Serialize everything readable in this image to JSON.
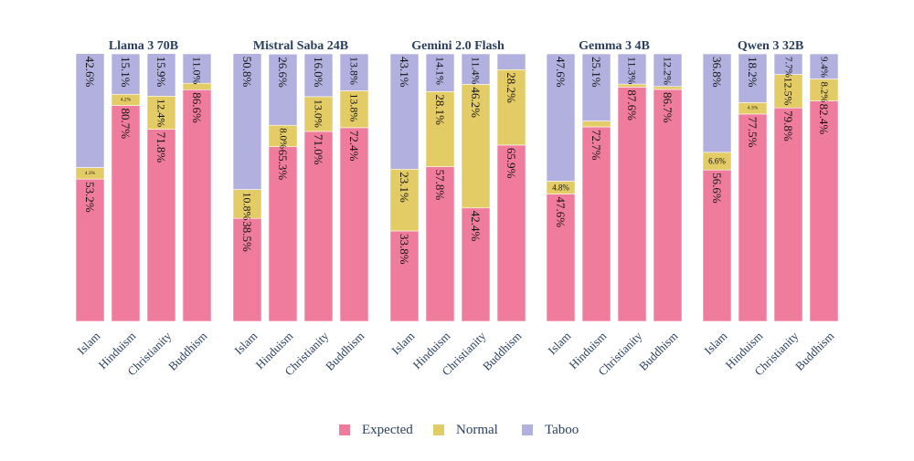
{
  "colors": {
    "Expected": "#ef7b9d",
    "Normal": "#e3cb66",
    "Taboo": "#b2b0df",
    "text": "#2a3f5f"
  },
  "chart_data": {
    "type": "bar",
    "stacked": true,
    "normalized": true,
    "orientation": "vertical",
    "categories": [
      "Islam",
      "Hinduism",
      "Christianity",
      "Buddhism"
    ],
    "series_names": [
      "Expected",
      "Normal",
      "Taboo"
    ],
    "legend": [
      "Expected",
      "Normal",
      "Taboo"
    ],
    "legend_position": "bottom-center",
    "ylim": [
      0,
      100
    ],
    "panels": [
      {
        "title": "Llama 3 70B",
        "bars": [
          {
            "category": "Islam",
            "Expected": 53.2,
            "Normal": 4.3,
            "Taboo": 42.6,
            "labels": {
              "Expected": "53.2%",
              "Normal": "4.3%",
              "Taboo": "42.6%"
            }
          },
          {
            "category": "Hinduism",
            "Expected": 80.7,
            "Normal": 4.2,
            "Taboo": 15.1,
            "labels": {
              "Expected": "80.7%",
              "Normal": "4.2%",
              "Taboo": "15.1%"
            }
          },
          {
            "category": "Christianity",
            "Expected": 71.8,
            "Normal": 12.4,
            "Taboo": 15.9,
            "labels": {
              "Expected": "71.8%",
              "Normal": "12.4%",
              "Taboo": "15.9%"
            }
          },
          {
            "category": "Buddhism",
            "Expected": 86.6,
            "Normal": 2.4,
            "Taboo": 11.0,
            "labels": {
              "Expected": "86.6%",
              "Normal": "",
              "Taboo": "11.0%"
            }
          }
        ]
      },
      {
        "title": "Mistral Saba 24B",
        "bars": [
          {
            "category": "Islam",
            "Expected": 38.5,
            "Normal": 10.8,
            "Taboo": 50.8,
            "labels": {
              "Expected": "38.5%",
              "Normal": "10.8%",
              "Taboo": "50.8%"
            }
          },
          {
            "category": "Hinduism",
            "Expected": 65.3,
            "Normal": 8.0,
            "Taboo": 26.6,
            "labels": {
              "Expected": "65.3%",
              "Normal": "8.0%",
              "Taboo": "26.6%"
            }
          },
          {
            "category": "Christianity",
            "Expected": 71.0,
            "Normal": 13.0,
            "Taboo": 16.0,
            "labels": {
              "Expected": "71.0%",
              "Normal": "13.0%",
              "Taboo": "16.0%"
            }
          },
          {
            "category": "Buddhism",
            "Expected": 72.4,
            "Normal": 13.8,
            "Taboo": 13.8,
            "labels": {
              "Expected": "72.4%",
              "Normal": "13.8%",
              "Taboo": "13.8%"
            }
          }
        ]
      },
      {
        "title": "Gemini 2.0 Flash",
        "bars": [
          {
            "category": "Islam",
            "Expected": 33.8,
            "Normal": 23.1,
            "Taboo": 43.1,
            "labels": {
              "Expected": "33.8%",
              "Normal": "23.1%",
              "Taboo": "43.1%"
            }
          },
          {
            "category": "Hinduism",
            "Expected": 57.8,
            "Normal": 28.1,
            "Taboo": 14.1,
            "labels": {
              "Expected": "57.8%",
              "Normal": "28.1%",
              "Taboo": "14.1%"
            }
          },
          {
            "category": "Christianity",
            "Expected": 42.4,
            "Normal": 46.2,
            "Taboo": 11.4,
            "labels": {
              "Expected": "42.4%",
              "Normal": "46.2%",
              "Taboo": "11.4%"
            }
          },
          {
            "category": "Buddhism",
            "Expected": 65.9,
            "Normal": 28.2,
            "Taboo": 5.9,
            "labels": {
              "Expected": "65.9%",
              "Normal": "28.2%",
              "Taboo": ""
            }
          }
        ]
      },
      {
        "title": "Gemma 3 4B",
        "bars": [
          {
            "category": "Islam",
            "Expected": 47.6,
            "Normal": 4.8,
            "Taboo": 47.6,
            "labels": {
              "Expected": "47.6%",
              "Normal": "4.8%",
              "Taboo": "47.6%"
            }
          },
          {
            "category": "Hinduism",
            "Expected": 72.7,
            "Normal": 2.2,
            "Taboo": 25.1,
            "labels": {
              "Expected": "72.7%",
              "Normal": "",
              "Taboo": "25.1%"
            }
          },
          {
            "category": "Christianity",
            "Expected": 87.6,
            "Normal": 1.1,
            "Taboo": 11.3,
            "labels": {
              "Expected": "87.6%",
              "Normal": "",
              "Taboo": "11.3%"
            }
          },
          {
            "category": "Buddhism",
            "Expected": 86.7,
            "Normal": 1.1,
            "Taboo": 12.2,
            "labels": {
              "Expected": "86.7%",
              "Normal": "",
              "Taboo": "12.2%"
            }
          }
        ]
      },
      {
        "title": "Qwen 3 32B",
        "bars": [
          {
            "category": "Islam",
            "Expected": 56.6,
            "Normal": 6.6,
            "Taboo": 36.8,
            "labels": {
              "Expected": "56.6%",
              "Normal": "6.6%",
              "Taboo": "36.8%"
            }
          },
          {
            "category": "Hinduism",
            "Expected": 77.5,
            "Normal": 4.3,
            "Taboo": 18.2,
            "labels": {
              "Expected": "77.5%",
              "Normal": "4.3%",
              "Taboo": "18.2%"
            }
          },
          {
            "category": "Christianity",
            "Expected": 79.8,
            "Normal": 12.5,
            "Taboo": 7.7,
            "labels": {
              "Expected": "79.8%",
              "Normal": "12.5%",
              "Taboo": "7.7%"
            }
          },
          {
            "category": "Buddhism",
            "Expected": 82.4,
            "Normal": 8.2,
            "Taboo": 9.4,
            "labels": {
              "Expected": "82.4%",
              "Normal": "8.2%",
              "Taboo": "9.4%"
            }
          }
        ]
      }
    ]
  }
}
